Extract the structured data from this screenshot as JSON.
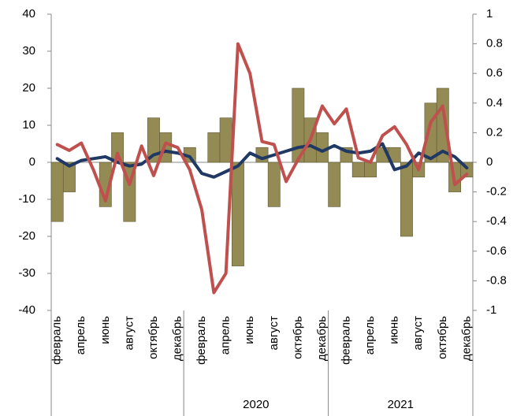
{
  "chart_data": {
    "type": "bar_line",
    "categories": [
      "февраль",
      null,
      "апрель",
      null,
      "июнь",
      null,
      "август",
      null,
      "октябрь",
      null,
      "декабрь",
      null,
      "февраль",
      null,
      "апрель",
      null,
      "июнь",
      null,
      "август",
      null,
      "октябрь",
      null,
      "декабрь",
      null,
      "февраль",
      null,
      "апрель",
      null,
      "июнь",
      null,
      "август",
      null,
      "октябрь",
      null,
      "декабрь"
    ],
    "groups": [
      {
        "label": null,
        "size": 11
      },
      {
        "label": "2020",
        "size": 12
      },
      {
        "label": "2021",
        "size": 12
      }
    ],
    "series": [
      {
        "kind": "bar",
        "axis": "y",
        "color": "#948a54",
        "values": [
          -16,
          -8,
          0,
          0,
          -12,
          8,
          -16,
          0,
          12,
          8,
          0,
          4,
          0,
          8,
          12,
          -28,
          0,
          4,
          -12,
          0,
          20,
          12,
          8,
          -12,
          4,
          -4,
          -4,
          4,
          4,
          -20,
          -4,
          16,
          20,
          -8,
          -4
        ]
      },
      {
        "kind": "line",
        "axis": "y",
        "color": "#1f3864",
        "values": [
          1,
          -1,
          0.5,
          1,
          1.5,
          0,
          -1,
          -0.5,
          2,
          3,
          2.5,
          1.5,
          -3,
          -4,
          -2.5,
          -1,
          2.5,
          1,
          2,
          3,
          4,
          4.5,
          3,
          4.5,
          3,
          2.5,
          3,
          5,
          -2,
          -1,
          2.5,
          1,
          3,
          1.5,
          -1.5
        ]
      },
      {
        "kind": "line",
        "axis": "y2",
        "color": "#c0504d",
        "values": [
          0.12,
          0.08,
          0.13,
          -0.05,
          -0.26,
          0.06,
          -0.15,
          0.11,
          -0.09,
          0.13,
          0.1,
          -0.05,
          -0.32,
          -0.88,
          -0.75,
          0.8,
          0.6,
          0.14,
          0.12,
          -0.13,
          0.02,
          0.15,
          0.38,
          0.26,
          0.36,
          0.03,
          0,
          0.18,
          0.24,
          0.12,
          -0.05,
          0.27,
          0.38,
          -0.15,
          -0.08
        ]
      }
    ],
    "ylim": [
      -40,
      40
    ],
    "yticks": [
      -40,
      -30,
      -20,
      -10,
      0,
      10,
      20,
      30,
      40
    ],
    "y2lim": [
      -1,
      1
    ],
    "y2ticks": [
      -1,
      -0.8,
      -0.6,
      -0.4,
      -0.2,
      0,
      0.2,
      0.4,
      0.6,
      0.8,
      1
    ]
  }
}
